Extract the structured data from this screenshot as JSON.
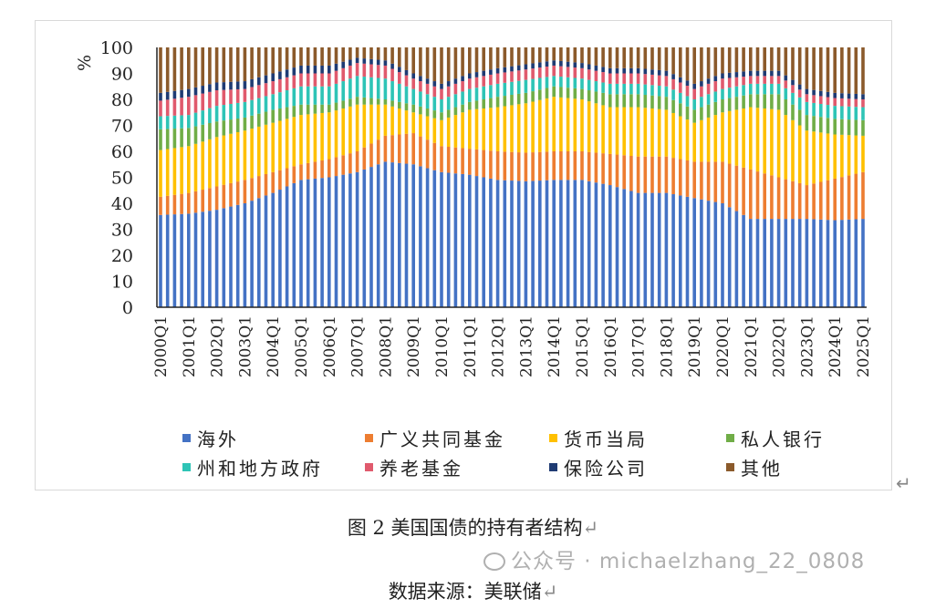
{
  "chart_data": {
    "type": "bar",
    "stacked": true,
    "ylabel": "%",
    "ylim": [
      0,
      100
    ],
    "yticks": [
      0,
      10,
      20,
      30,
      40,
      50,
      60,
      70,
      80,
      90,
      100
    ],
    "first_quarter": "2000Q1",
    "last_quarter": "2025Q1",
    "xtick_labels": [
      "2000Q1",
      "2001Q1",
      "2002Q1",
      "2003Q1",
      "2004Q1",
      "2005Q1",
      "2006Q1",
      "2007Q1",
      "2008Q1",
      "2009Q1",
      "2010Q1",
      "2011Q1",
      "2012Q1",
      "2013Q1",
      "2014Q1",
      "2015Q1",
      "2016Q1",
      "2017Q1",
      "2018Q1",
      "2019Q1",
      "2020Q1",
      "2021Q1",
      "2022Q1",
      "2023Q1",
      "2024Q1",
      "2025Q1"
    ],
    "note_values": "values at each Q1; intermediate quarters linearly interpolated",
    "series": [
      {
        "name": "海外",
        "color": "#4472c4",
        "values": [
          35.5,
          36,
          37.5,
          40,
          44,
          49,
          50,
          52,
          56,
          55,
          52,
          51,
          49,
          48.5,
          49,
          49,
          47,
          44,
          44,
          42,
          40,
          34,
          34,
          34,
          33.5,
          34
        ]
      },
      {
        "name": "广义共同基金",
        "color": "#ed7d31",
        "values": [
          7,
          8,
          9,
          9,
          8,
          6,
          7,
          8,
          10,
          12,
          10,
          10,
          11,
          11,
          11,
          11,
          12,
          14,
          14,
          14,
          16,
          19,
          16,
          13,
          16,
          18
        ]
      },
      {
        "name": "货币当局",
        "color": "#ffc000",
        "values": [
          18,
          18,
          19,
          19,
          19,
          19,
          18,
          18,
          12,
          8,
          10,
          15,
          17,
          19,
          21,
          20,
          18,
          19,
          18,
          15,
          19,
          24,
          26,
          21,
          17,
          14
        ]
      },
      {
        "name": "私人银行",
        "color": "#70ad47",
        "values": [
          8,
          7,
          6,
          5,
          5,
          4,
          3,
          3,
          2,
          3,
          3,
          3,
          4,
          4,
          4,
          4,
          5,
          5,
          5,
          5,
          5,
          5,
          6,
          6,
          6,
          6
        ]
      },
      {
        "name": "州和地方政府",
        "color": "#2ec4b6",
        "values": [
          5,
          5,
          6,
          6,
          6,
          7,
          7,
          8,
          8,
          6,
          5,
          5,
          5,
          5,
          4,
          4,
          4,
          4,
          4,
          4,
          4,
          4,
          4,
          5,
          5,
          5
        ]
      },
      {
        "name": "养老基金",
        "color": "#e05a6d",
        "values": [
          6,
          7,
          6,
          5,
          5,
          5,
          5,
          5,
          5,
          4,
          4,
          4,
          4,
          4,
          4,
          4,
          4,
          4,
          4,
          4,
          4,
          3,
          3,
          3,
          3,
          3
        ]
      },
      {
        "name": "保险公司",
        "color": "#1f3b73",
        "values": [
          3,
          3,
          3,
          3,
          3,
          3,
          3,
          2,
          2,
          2,
          2,
          2,
          2,
          2,
          2,
          2,
          2,
          2,
          2,
          2,
          2,
          2,
          2,
          2,
          2,
          2
        ]
      },
      {
        "name": "其他",
        "color": "#8b5a2b",
        "values": [
          17.5,
          16,
          13.5,
          13,
          10,
          7,
          7,
          4,
          5,
          10,
          14,
          10,
          8,
          6.5,
          5,
          6,
          8,
          8,
          9,
          14,
          10,
          9,
          9,
          16,
          17.5,
          18
        ]
      }
    ]
  },
  "caption": "图 2 美国国债的持有者结构",
  "source": "数据来源：美联储",
  "watermark": "公众号 · michaelzhang_22_0808",
  "return_mark": "↵"
}
